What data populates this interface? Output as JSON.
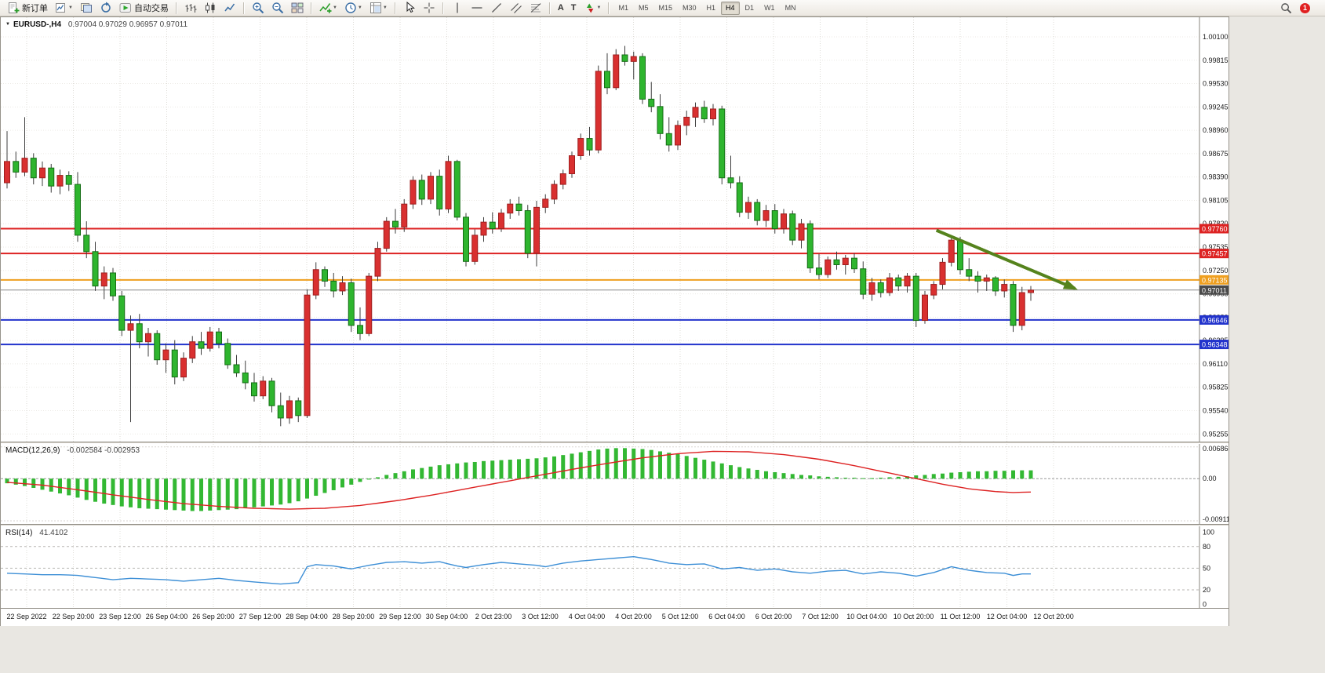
{
  "app": {
    "toolbar": {
      "new_order": "新订单",
      "auto_trading": "自动交易",
      "timeframes": [
        "M1",
        "M5",
        "M15",
        "M30",
        "H1",
        "H4",
        "D1",
        "W1",
        "MN"
      ],
      "active_timeframe": "H4",
      "notification_badge": "1"
    }
  },
  "chart": {
    "symbol": "EURUSD-,H4",
    "ohlc": "0.97004 0.97029 0.96957 0.97011"
  },
  "chart_data": {
    "type": "candlestick",
    "symbol": "EURUSD-",
    "timeframe": "H4",
    "up_color": "#d93030",
    "down_color": "#2eb52e",
    "up_stroke": "#9e1f1f",
    "down_stroke": "#166e16",
    "plot": {
      "price_top": 1.0032,
      "price_bottom": 0.95162
    },
    "price_axis_labels": [
      "1.00100",
      "0.99815",
      "0.99530",
      "0.99245",
      "0.98960",
      "0.98675",
      "0.98390",
      "0.98105",
      "0.97820",
      "0.97535",
      "0.97250",
      "0.96965",
      "0.96680",
      "0.96395",
      "0.96110",
      "0.95825",
      "0.95540",
      "0.95255"
    ],
    "time_labels": [
      "22 Sep 2022",
      "22 Sep 20:00",
      "23 Sep 12:00",
      "26 Sep 04:00",
      "26 Sep 20:00",
      "27 Sep 12:00",
      "28 Sep 04:00",
      "28 Sep 20:00",
      "29 Sep 12:00",
      "30 Sep 04:00",
      "2 Oct 23:00",
      "3 Oct 12:00",
      "4 Oct 04:00",
      "4 Oct 20:00",
      "5 Oct 12:00",
      "6 Oct 04:00",
      "6 Oct 20:00",
      "7 Oct 12:00",
      "10 Oct 04:00",
      "10 Oct 20:00",
      "11 Oct 12:00",
      "12 Oct 04:00",
      "12 Oct 20:00"
    ],
    "hlines": [
      {
        "price": 0.9776,
        "label": "0.97760",
        "color": "#dd2222",
        "width": 2
      },
      {
        "price": 0.97457,
        "label": "0.97457",
        "color": "#dd2222",
        "width": 2
      },
      {
        "price": 0.97135,
        "label": "0.97135",
        "color": "#ef9f1f",
        "width": 2
      },
      {
        "price": 0.97011,
        "label": "0.97011",
        "color": "#888888",
        "width": 1,
        "role": "current-price"
      },
      {
        "price": 0.96646,
        "label": "0.96646",
        "color": "#2233cc",
        "width": 2
      },
      {
        "price": 0.96348,
        "label": "0.96348",
        "color": "#2233cc",
        "width": 2
      }
    ],
    "trend_arrow": {
      "from_index": 105.3,
      "from_price": 0.9774,
      "to_index": 121.0,
      "to_price": 0.9703,
      "color": "#55831d"
    },
    "candles": [
      [
        0.9832,
        0.9895,
        0.9825,
        0.9858
      ],
      [
        0.9858,
        0.987,
        0.9838,
        0.9845
      ],
      [
        0.9845,
        0.9912,
        0.984,
        0.9862
      ],
      [
        0.9862,
        0.9868,
        0.983,
        0.9838
      ],
      [
        0.9838,
        0.9858,
        0.9828,
        0.985
      ],
      [
        0.985,
        0.9855,
        0.982,
        0.9828
      ],
      [
        0.9828,
        0.9848,
        0.9818,
        0.9841
      ],
      [
        0.9841,
        0.9846,
        0.9822,
        0.983
      ],
      [
        0.983,
        0.9845,
        0.976,
        0.9768
      ],
      [
        0.9768,
        0.9785,
        0.974,
        0.9748
      ],
      [
        0.9748,
        0.976,
        0.97,
        0.9706
      ],
      [
        0.9706,
        0.973,
        0.969,
        0.9722
      ],
      [
        0.9722,
        0.9728,
        0.9688,
        0.9694
      ],
      [
        0.9694,
        0.97,
        0.9645,
        0.9652
      ],
      [
        0.9652,
        0.967,
        0.954,
        0.966
      ],
      [
        0.966,
        0.9672,
        0.963,
        0.9638
      ],
      [
        0.9638,
        0.9655,
        0.962,
        0.9648
      ],
      [
        0.9648,
        0.9652,
        0.961,
        0.9616
      ],
      [
        0.9616,
        0.9636,
        0.96,
        0.9628
      ],
      [
        0.9628,
        0.964,
        0.9586,
        0.9595
      ],
      [
        0.9595,
        0.9625,
        0.959,
        0.9618
      ],
      [
        0.9618,
        0.9645,
        0.9612,
        0.9638
      ],
      [
        0.9638,
        0.965,
        0.9622,
        0.963
      ],
      [
        0.963,
        0.9656,
        0.9626,
        0.965
      ],
      [
        0.965,
        0.9655,
        0.963,
        0.9636
      ],
      [
        0.9636,
        0.9642,
        0.9605,
        0.961
      ],
      [
        0.961,
        0.9622,
        0.9595,
        0.96
      ],
      [
        0.96,
        0.9615,
        0.958,
        0.9588
      ],
      [
        0.9588,
        0.96,
        0.9565,
        0.9572
      ],
      [
        0.9572,
        0.9596,
        0.9568,
        0.959
      ],
      [
        0.959,
        0.9594,
        0.9552,
        0.956
      ],
      [
        0.956,
        0.9576,
        0.9535,
        0.9545
      ],
      [
        0.9545,
        0.9572,
        0.9538,
        0.9566
      ],
      [
        0.9566,
        0.957,
        0.954,
        0.9548
      ],
      [
        0.9548,
        0.9702,
        0.9545,
        0.9695
      ],
      [
        0.9695,
        0.9735,
        0.969,
        0.9726
      ],
      [
        0.9726,
        0.973,
        0.9705,
        0.9712
      ],
      [
        0.9712,
        0.9722,
        0.9692,
        0.97
      ],
      [
        0.97,
        0.9718,
        0.9695,
        0.971
      ],
      [
        0.971,
        0.9715,
        0.965,
        0.9658
      ],
      [
        0.9658,
        0.968,
        0.964,
        0.9648
      ],
      [
        0.9648,
        0.9722,
        0.9645,
        0.9718
      ],
      [
        0.9718,
        0.976,
        0.9712,
        0.9752
      ],
      [
        0.9752,
        0.979,
        0.9748,
        0.9785
      ],
      [
        0.9785,
        0.98,
        0.977,
        0.9778
      ],
      [
        0.9778,
        0.9812,
        0.9772,
        0.9806
      ],
      [
        0.9806,
        0.984,
        0.98,
        0.9835
      ],
      [
        0.9835,
        0.9842,
        0.9805,
        0.9812
      ],
      [
        0.9812,
        0.9845,
        0.9806,
        0.984
      ],
      [
        0.984,
        0.9848,
        0.9792,
        0.98
      ],
      [
        0.98,
        0.9865,
        0.9795,
        0.9858
      ],
      [
        0.9858,
        0.986,
        0.9786,
        0.979
      ],
      [
        0.979,
        0.9795,
        0.973,
        0.9736
      ],
      [
        0.9736,
        0.9775,
        0.9732,
        0.9768
      ],
      [
        0.9768,
        0.979,
        0.976,
        0.9784
      ],
      [
        0.9784,
        0.9796,
        0.977,
        0.9776
      ],
      [
        0.9776,
        0.98,
        0.9772,
        0.9795
      ],
      [
        0.9795,
        0.9812,
        0.9788,
        0.9806
      ],
      [
        0.9806,
        0.9815,
        0.9792,
        0.9798
      ],
      [
        0.9798,
        0.9805,
        0.974,
        0.9746
      ],
      [
        0.9746,
        0.981,
        0.973,
        0.9802
      ],
      [
        0.9802,
        0.9818,
        0.9795,
        0.9812
      ],
      [
        0.9812,
        0.9835,
        0.9806,
        0.983
      ],
      [
        0.983,
        0.9848,
        0.9824,
        0.9843
      ],
      [
        0.9843,
        0.987,
        0.9838,
        0.9865
      ],
      [
        0.9865,
        0.9892,
        0.986,
        0.9886
      ],
      [
        0.9886,
        0.99,
        0.9865,
        0.9872
      ],
      [
        0.9872,
        0.9975,
        0.9868,
        0.9968
      ],
      [
        0.9968,
        0.999,
        0.994,
        0.9948
      ],
      [
        0.9948,
        0.9995,
        0.9945,
        0.9988
      ],
      [
        0.9988,
        0.9999,
        0.9975,
        0.998
      ],
      [
        0.998,
        0.9992,
        0.9958,
        0.9986
      ],
      [
        0.9986,
        0.999,
        0.9928,
        0.9934
      ],
      [
        0.9934,
        0.9955,
        0.9918,
        0.9925
      ],
      [
        0.9925,
        0.994,
        0.9885,
        0.9892
      ],
      [
        0.9892,
        0.9912,
        0.987,
        0.9878
      ],
      [
        0.9878,
        0.9908,
        0.9872,
        0.9902
      ],
      [
        0.9902,
        0.992,
        0.989,
        0.9912
      ],
      [
        0.9912,
        0.993,
        0.99,
        0.9924
      ],
      [
        0.9924,
        0.9932,
        0.9905,
        0.991
      ],
      [
        0.991,
        0.9928,
        0.9902,
        0.9922
      ],
      [
        0.9922,
        0.9926,
        0.983,
        0.9838
      ],
      [
        0.9838,
        0.9865,
        0.9825,
        0.9832
      ],
      [
        0.9832,
        0.984,
        0.979,
        0.9796
      ],
      [
        0.9796,
        0.9815,
        0.9788,
        0.9808
      ],
      [
        0.9808,
        0.9812,
        0.978,
        0.9786
      ],
      [
        0.9786,
        0.9805,
        0.9778,
        0.9798
      ],
      [
        0.9798,
        0.9806,
        0.977,
        0.9776
      ],
      [
        0.9776,
        0.98,
        0.977,
        0.9794
      ],
      [
        0.9794,
        0.9798,
        0.9756,
        0.9762
      ],
      [
        0.9762,
        0.9788,
        0.9752,
        0.9782
      ],
      [
        0.9782,
        0.9786,
        0.9722,
        0.9728
      ],
      [
        0.9728,
        0.9745,
        0.9714,
        0.972
      ],
      [
        0.972,
        0.9742,
        0.9716,
        0.9738
      ],
      [
        0.9738,
        0.9748,
        0.9726,
        0.9732
      ],
      [
        0.9732,
        0.9744,
        0.972,
        0.974
      ],
      [
        0.974,
        0.9746,
        0.9722,
        0.9727
      ],
      [
        0.9727,
        0.9736,
        0.969,
        0.9696
      ],
      [
        0.9696,
        0.9716,
        0.9688,
        0.971
      ],
      [
        0.971,
        0.9714,
        0.9692,
        0.9698
      ],
      [
        0.9698,
        0.9722,
        0.9694,
        0.9716
      ],
      [
        0.9716,
        0.972,
        0.97,
        0.9706
      ],
      [
        0.9706,
        0.9722,
        0.9698,
        0.9718
      ],
      [
        0.9718,
        0.9722,
        0.9656,
        0.9664
      ],
      [
        0.9664,
        0.97,
        0.966,
        0.9695
      ],
      [
        0.9695,
        0.9712,
        0.969,
        0.9708
      ],
      [
        0.9708,
        0.974,
        0.9702,
        0.9735
      ],
      [
        0.9735,
        0.9768,
        0.973,
        0.9762
      ],
      [
        0.9762,
        0.9766,
        0.972,
        0.9726
      ],
      [
        0.9726,
        0.974,
        0.9712,
        0.9718
      ],
      [
        0.9718,
        0.9724,
        0.9698,
        0.9712
      ],
      [
        0.9712,
        0.972,
        0.97,
        0.9716
      ],
      [
        0.9716,
        0.9718,
        0.9694,
        0.97
      ],
      [
        0.97,
        0.9714,
        0.9692,
        0.9708
      ],
      [
        0.9708,
        0.9712,
        0.965,
        0.9658
      ],
      [
        0.9658,
        0.9705,
        0.9652,
        0.9698
      ],
      [
        0.9698,
        0.9706,
        0.9688,
        0.9701
      ]
    ],
    "indicators": {
      "macd": {
        "label": "MACD(12,26,9)",
        "values": "-0.002584 -0.002953",
        "scale_max": "0.006868",
        "scale_zero": "0.00",
        "scale_min": "-0.009114",
        "histogram": [
          -0.001,
          -0.0013,
          -0.0016,
          -0.002,
          -0.0024,
          -0.0028,
          -0.0032,
          -0.0036,
          -0.0041,
          -0.0046,
          -0.005,
          -0.0054,
          -0.0057,
          -0.006,
          -0.0062,
          -0.0064,
          -0.0065,
          -0.0066,
          -0.0067,
          -0.0068,
          -0.0069,
          -0.007,
          -0.007,
          -0.0069,
          -0.0068,
          -0.0067,
          -0.0066,
          -0.0064,
          -0.0062,
          -0.006,
          -0.0058,
          -0.0056,
          -0.0053,
          -0.0049,
          -0.0043,
          -0.0037,
          -0.0031,
          -0.0025,
          -0.0019,
          -0.0013,
          -0.0007,
          -0.0002,
          0.0003,
          0.0008,
          0.0012,
          0.0016,
          0.002,
          0.0023,
          0.0026,
          0.0029,
          0.0031,
          0.0033,
          0.0035,
          0.0036,
          0.0038,
          0.0039,
          0.004,
          0.0041,
          0.0042,
          0.0043,
          0.0044,
          0.0046,
          0.0048,
          0.0051,
          0.0054,
          0.0057,
          0.006,
          0.0063,
          0.0065,
          0.0066,
          0.0066,
          0.0065,
          0.0064,
          0.0062,
          0.0059,
          0.0056,
          0.0053,
          0.0049,
          0.0045,
          0.0041,
          0.0037,
          0.0033,
          0.0029,
          0.0025,
          0.0022,
          0.0019,
          0.0016,
          0.0014,
          0.0012,
          0.001,
          0.0008,
          0.0007,
          0.0005,
          0.0004,
          0.0003,
          0.0002,
          0.0002,
          0.0001,
          0.0001,
          0.0002,
          0.0003,
          0.0004,
          0.0005,
          0.0007,
          0.0008,
          0.001,
          0.0011,
          0.0013,
          0.0014,
          0.0015,
          0.0016,
          0.0016,
          0.0017,
          0.0017,
          0.0018,
          0.0018,
          0.0018
        ],
        "signal": [
          [
            0,
            -0.0008
          ],
          [
            4,
            -0.0014
          ],
          [
            8,
            -0.0024
          ],
          [
            12,
            -0.0035
          ],
          [
            16,
            -0.0045
          ],
          [
            20,
            -0.0054
          ],
          [
            24,
            -0.006
          ],
          [
            28,
            -0.0064
          ],
          [
            32,
            -0.0066
          ],
          [
            36,
            -0.0064
          ],
          [
            40,
            -0.0058
          ],
          [
            44,
            -0.0048
          ],
          [
            48,
            -0.0036
          ],
          [
            52,
            -0.0022
          ],
          [
            56,
            -0.0008
          ],
          [
            60,
            0.0006
          ],
          [
            64,
            0.002
          ],
          [
            68,
            0.0033
          ],
          [
            72,
            0.0045
          ],
          [
            76,
            0.0054
          ],
          [
            80,
            0.0059
          ],
          [
            84,
            0.0058
          ],
          [
            88,
            0.0052
          ],
          [
            92,
            0.0042
          ],
          [
            96,
            0.0028
          ],
          [
            100,
            0.0012
          ],
          [
            103,
            0.0
          ],
          [
            106,
            -0.0012
          ],
          [
            109,
            -0.0022
          ],
          [
            112,
            -0.0028
          ],
          [
            114,
            -0.003
          ],
          [
            116,
            -0.0029
          ]
        ]
      },
      "rsi": {
        "label": "RSI(14)",
        "value": "41.4102",
        "levels": [
          "100",
          "80",
          "50",
          "20",
          "0"
        ],
        "points": [
          [
            0,
            43
          ],
          [
            2,
            42
          ],
          [
            4,
            41
          ],
          [
            6,
            41
          ],
          [
            8,
            40
          ],
          [
            10,
            37
          ],
          [
            12,
            34
          ],
          [
            14,
            36
          ],
          [
            16,
            35
          ],
          [
            18,
            34
          ],
          [
            20,
            32
          ],
          [
            22,
            34
          ],
          [
            24,
            36
          ],
          [
            26,
            33
          ],
          [
            28,
            31
          ],
          [
            30,
            29
          ],
          [
            31,
            28
          ],
          [
            33,
            30
          ],
          [
            34,
            52
          ],
          [
            35,
            55
          ],
          [
            37,
            53
          ],
          [
            39,
            49
          ],
          [
            41,
            54
          ],
          [
            43,
            58
          ],
          [
            45,
            59
          ],
          [
            47,
            57
          ],
          [
            49,
            59
          ],
          [
            51,
            53
          ],
          [
            52,
            51
          ],
          [
            54,
            55
          ],
          [
            56,
            58
          ],
          [
            58,
            56
          ],
          [
            60,
            54
          ],
          [
            61,
            52
          ],
          [
            63,
            57
          ],
          [
            65,
            60
          ],
          [
            67,
            62
          ],
          [
            69,
            64
          ],
          [
            71,
            66
          ],
          [
            73,
            62
          ],
          [
            75,
            57
          ],
          [
            77,
            55
          ],
          [
            79,
            56
          ],
          [
            81,
            49
          ],
          [
            83,
            51
          ],
          [
            85,
            47
          ],
          [
            87,
            49
          ],
          [
            89,
            45
          ],
          [
            91,
            43
          ],
          [
            93,
            46
          ],
          [
            95,
            47
          ],
          [
            97,
            42
          ],
          [
            99,
            45
          ],
          [
            101,
            43
          ],
          [
            103,
            39
          ],
          [
            105,
            44
          ],
          [
            107,
            52
          ],
          [
            109,
            47
          ],
          [
            111,
            44
          ],
          [
            113,
            43
          ],
          [
            114,
            40
          ],
          [
            115,
            42
          ],
          [
            116,
            42
          ]
        ]
      }
    }
  }
}
